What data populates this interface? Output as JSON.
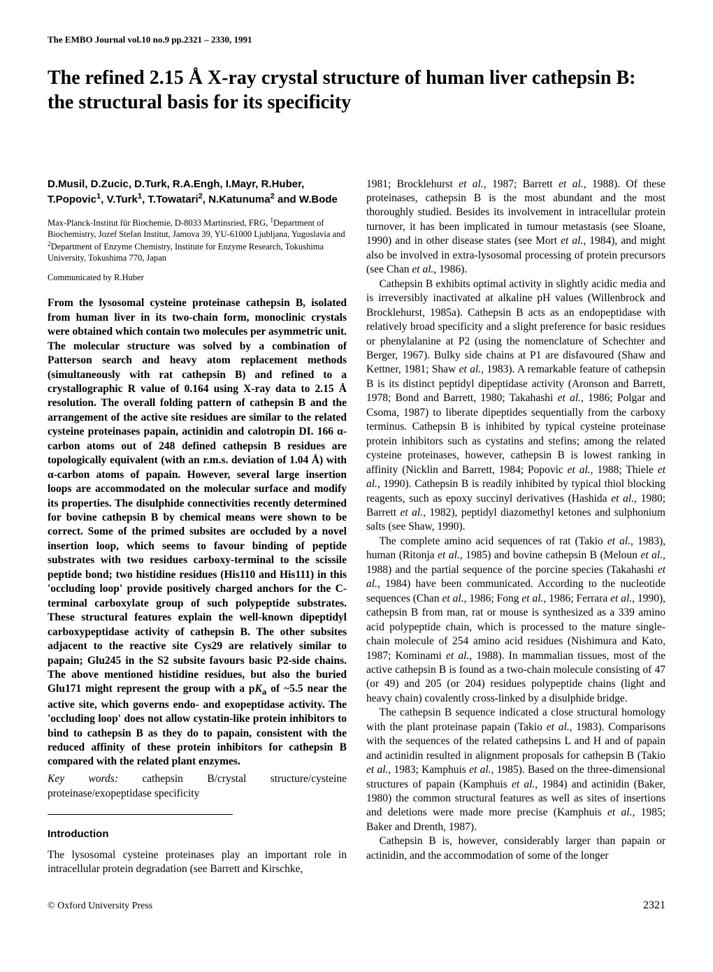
{
  "journal_header": "The EMBO Journal vol.10 no.9 pp.2321 – 2330, 1991",
  "title": "The refined 2.15 Å X-ray crystal structure of human liver cathepsin B: the structural basis for its specificity",
  "authors_html": "D.Musil, D.Zucic, D.Turk, R.A.Engh, I.Mayr, R.Huber, T.Popovic<sup>1</sup>, V.Turk<sup>1</sup>, T.Towatari<sup>2</sup>, N.Katunuma<sup>2</sup> and W.Bode",
  "affiliations_html": "Max-Planck-Institut für Biochemie, D-8033 Martinsried, FRG, <sup>1</sup>Department of Biochemistry, Jozef Stefan Institut, Jamova 39, YU-61000 Ljubljana, Yugoslavia and <sup>2</sup>Department of Enzyme Chemistry, Institute for Enzyme Research, Tokushima University, Tokushima 770, Japan",
  "communicated": "Communicated by R.Huber",
  "abstract_html": "From the lysosomal cysteine proteinase cathepsin B, isolated from human liver in its two-chain form, monoclinic crystals were obtained which contain two molecules per asymmetric unit. The molecular structure was solved by a combination of Patterson search and heavy atom replacement methods (simultaneously with rat cathepsin B) and refined to a crystallographic R value of 0.164 using X-ray data to 2.15 Å resolution. The overall folding pattern of cathepsin B and the arrangement of the active site residues are similar to the related cysteine proteinases papain, actinidin and calotropin DI. 166 α-carbon atoms out of 248 defined cathepsin B residues are topologically equivalent (with an r.m.s. deviation of 1.04 Å) with α-carbon atoms of papain. However, several large insertion loops are accommodated on the molecular surface and modify its properties. The disulphide connectivities recently determined for bovine cathepsin B by chemical means were shown to be correct. Some of the primed subsites are occluded by a novel insertion loop, which seems to favour binding of peptide substrates with two residues carboxy-terminal to the scissile peptide bond; two histidine residues (His110 and His111) in this 'occluding loop' provide positively charged anchors for the C-terminal carboxylate group of such polypeptide substrates. These structural features explain the well-known dipeptidyl carboxypeptidase activity of cathepsin B. The other subsites adjacent to the reactive site Cys29 are relatively similar to papain; Glu245 in the S2 subsite favours basic P2-side chains. The above mentioned histidine residues, but also the buried Glu171 might represent the group with a p<i>K</i><sub>a</sub> of ~5.5 near the active site, which governs endo- and exopeptidase activity. The 'occluding loop' does not allow cystatin-like protein inhibitors to bind to cathepsin B as they do to papain, consistent with the reduced affinity of these protein inhibitors for cathepsin B compared with the related plant enzymes.",
  "keywords_label": "Key words:",
  "keywords_text": " cathepsin B/crystal structure/cysteine proteinase/exopeptidase specificity",
  "introduction_heading": "Introduction",
  "intro_left": "The lysosomal cysteine proteinases play an important role in intracellular protein degradation (see Barrett and Kirschke,",
  "right_paragraphs_html": [
    "1981; Brocklehurst <i>et al.</i>, 1987; Barrett <i>et al.</i>, 1988). Of these proteinases, cathepsin B is the most abundant and the most thoroughly studied. Besides its involvement in intracellular protein turnover, it has been implicated in tumour metastasis (see Sloane, 1990) and in other disease states (see Mort <i>et al.</i>, 1984), and might also be involved in extra-lysosomal processing of protein precursors (see Chan <i>et al.</i>, 1986).",
    "Cathepsin B exhibits optimal activity in slightly acidic media and is irreversibly inactivated at alkaline pH values (Willenbrock and Brocklehurst, 1985a). Cathepsin B acts as an endopeptidase with relatively broad specificity and a slight preference for basic residues or phenylalanine at P2 (using the nomenclature of Schechter and Berger, 1967). Bulky side chains at P1 are disfavoured (Shaw and Kettner, 1981; Shaw <i>et al.</i>, 1983). A remarkable feature of cathepsin B is its distinct peptidyl dipeptidase activity (Aronson and Barrett, 1978; Bond and Barrett, 1980; Takahashi <i>et al.</i>, 1986; Polgar and Csoma, 1987) to liberate dipeptides sequentially from the carboxy terminus. Cathepsin B is inhibited by typical cysteine proteinase protein inhibitors such as cystatins and stefins; among the related cysteine proteinases, however, cathepsin B is lowest ranking in affinity (Nicklin and Barrett, 1984; Popovic <i>et al.</i>, 1988; Thiele <i>et al.</i>, 1990). Cathepsin B is readily inhibited by typical thiol blocking reagents, such as epoxy succinyl derivatives (Hashida <i>et al.</i>, 1980; Barrett <i>et al.</i>, 1982), peptidyl diazomethyl ketones and sulphonium salts (see Shaw, 1990).",
    "The complete amino acid sequences of rat (Takio <i>et al.</i>, 1983), human (Ritonja <i>et al.</i>, 1985) and bovine cathepsin B (Meloun <i>et al.</i>, 1988) and the partial sequence of the porcine species (Takahashi <i>et al.</i>, 1984) have been communicated. According to the nucleotide sequences (Chan <i>et al.</i>, 1986; Fong <i>et al.</i>, 1986; Ferrara <i>et al.</i>, 1990), cathepsin B from man, rat or mouse is synthesized as a 339 amino acid polypeptide chain, which is processed to the mature single-chain molecule of 254 amino acid residues (Nishimura and Kato, 1987; Kominami <i>et al.</i>, 1988). In mammalian tissues, most of the active cathepsin B is found as a two-chain molecule consisting of 47 (or 49) and 205 (or 204) residues polypeptide chains (light and heavy chain) covalently cross-linked by a disulphide bridge.",
    "The cathepsin B sequence indicated a close structural homology with the plant proteinase papain (Takio <i>et al.</i>, 1983). Comparisons with the sequences of the related cathepsins L and H and of papain and actinidin resulted in alignment proposals for cathepsin B (Takio <i>et al.</i>, 1983; Kamphuis <i>et al.</i>, 1985). Based on the three-dimensional structures of papain (Kamphuis <i>et al.</i>, 1984) and actinidin (Baker, 1980) the common structural features as well as sites of insertions and deletions were made more precise (Kamphuis <i>et al.</i>, 1985; Baker and Drenth, 1987).",
    "Cathepsin B is, however, considerably larger than papain or actinidin, and the accommodation of some of the longer"
  ],
  "right_indent_flags": [
    false,
    true,
    true,
    true,
    true
  ],
  "copyright": "© Oxford University Press",
  "page_number": "2321"
}
